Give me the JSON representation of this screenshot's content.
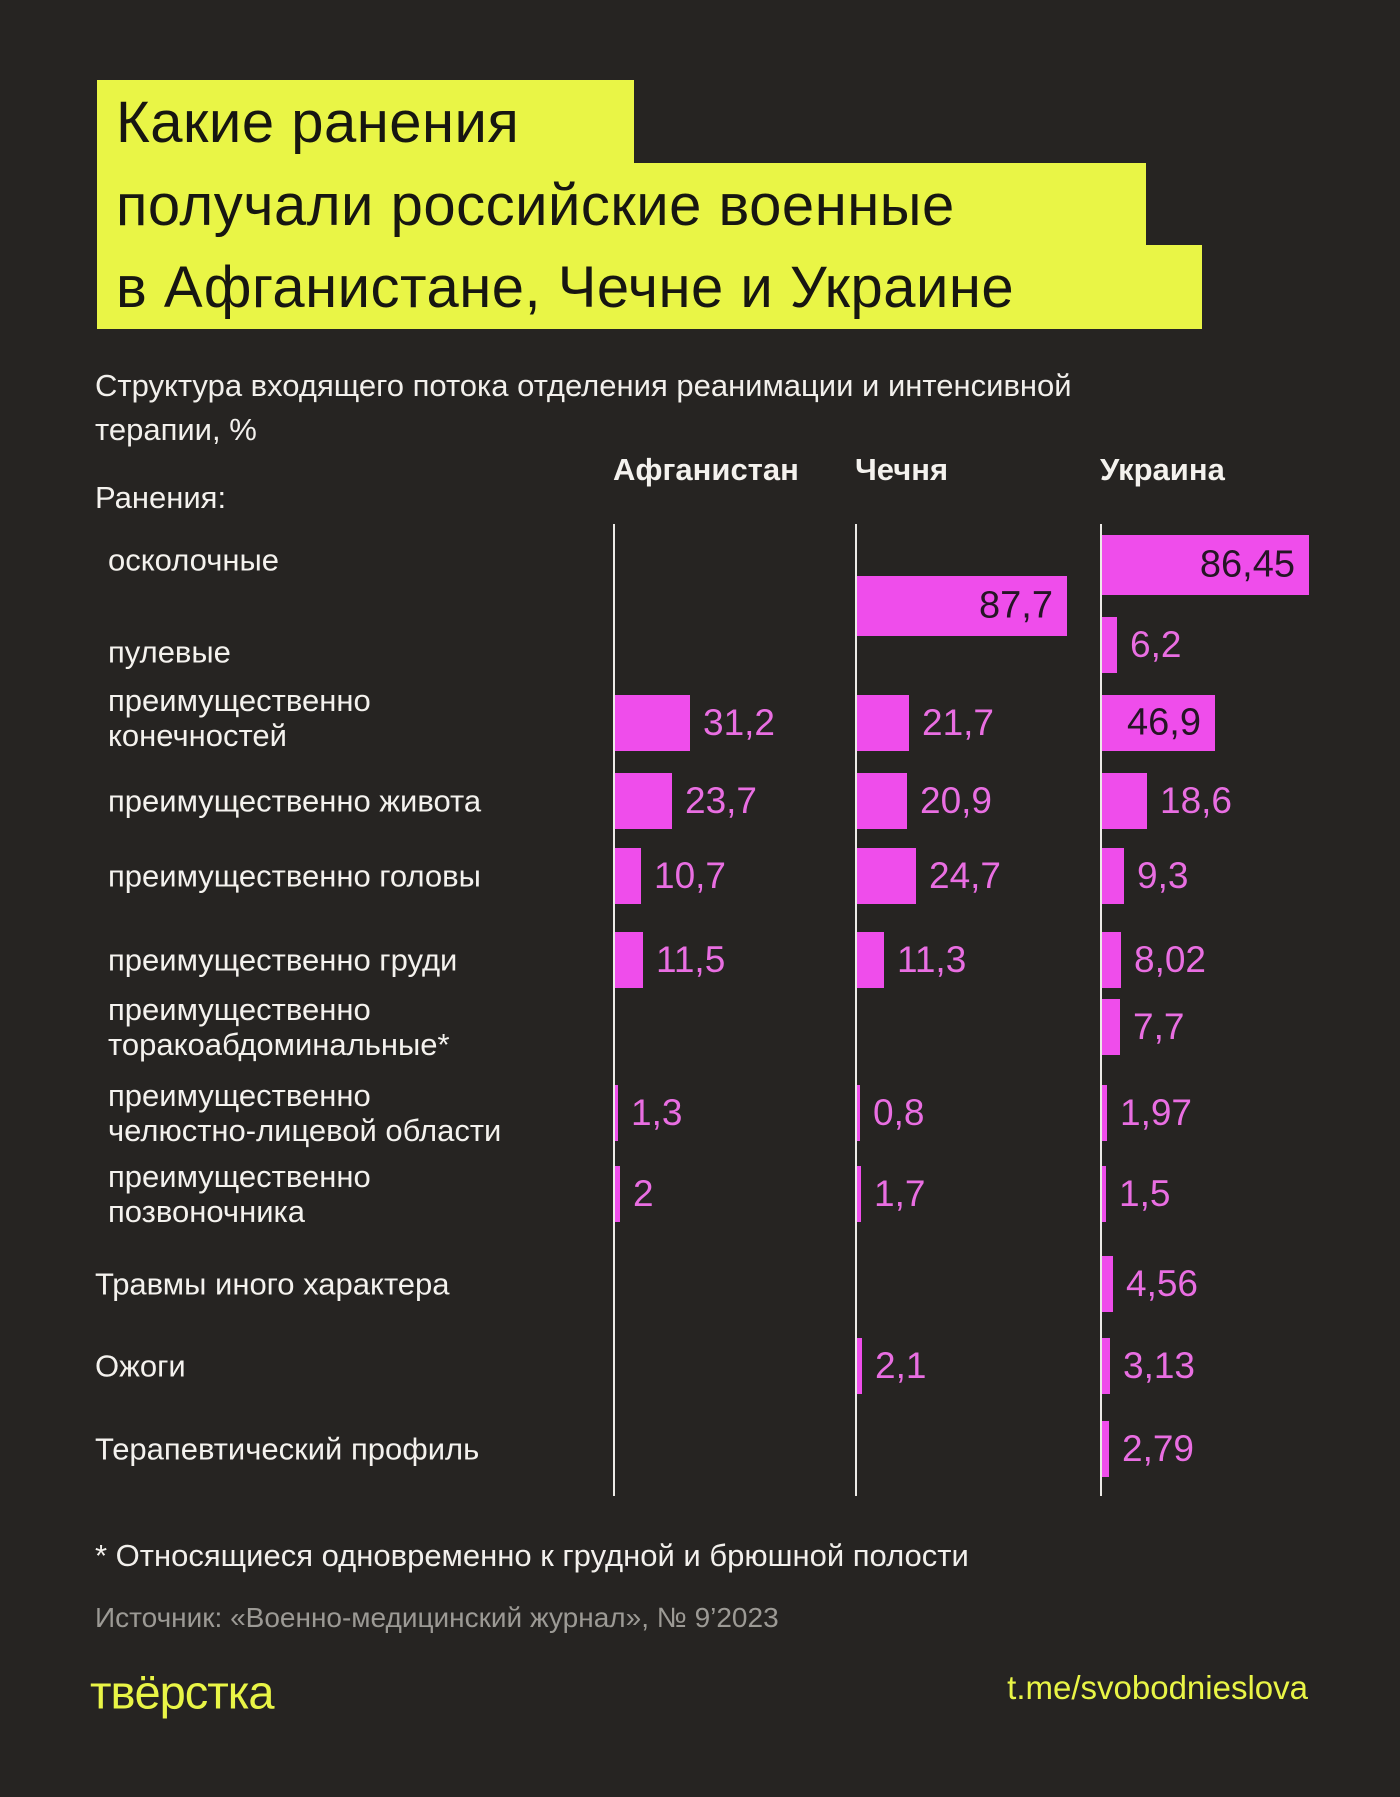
{
  "colors": {
    "background": "#262422",
    "accent_yellow": "#e9f546",
    "bar_magenta": "#ef4deb",
    "value_text_magenta": "#e96ee2",
    "value_text_dark": "#251525",
    "text_white": "#f4f2ee",
    "text_gray": "#9c9a95"
  },
  "title": {
    "lines": [
      "Какие ранения",
      "получали российские военные",
      "в Афганистане, Чечне и Украине"
    ]
  },
  "subtitle": "Структура входящего потока отделения реанимации и интенсивной терапии, %",
  "rows_caption": "Ранения:",
  "footnote": "* Относящиеся одновременно к грудной и брюшной полости",
  "source": "Источник: «Военно-медицинский журнал», № 9’2023",
  "footer": {
    "logo": "твёрстка",
    "telegram": "t.me/svobodnieslova"
  },
  "chart_data": {
    "type": "bar",
    "orientation": "horizontal",
    "unit": "%",
    "title": "Структура входящего потока отделения реанимации и интенсивной терапии, %",
    "columns": [
      "Афганистан",
      "Чечня",
      "Украина"
    ],
    "xlim": [
      0,
      100
    ],
    "grid": false,
    "rows": [
      {
        "label": "осколочные",
        "indent": true,
        "values": [
          null,
          null,
          86.45
        ],
        "display": [
          null,
          null,
          "86,45"
        ]
      },
      {
        "label": "пулевые",
        "indent": true,
        "values": [
          null,
          87.7,
          6.2
        ],
        "display": [
          null,
          "87,7",
          "6,2"
        ]
      },
      {
        "label": "преимущественно\nконечностей",
        "indent": true,
        "values": [
          31.2,
          21.7,
          46.9
        ],
        "display": [
          "31,2",
          "21,7",
          "46,9"
        ]
      },
      {
        "label": "преимущественно живота",
        "indent": true,
        "values": [
          23.7,
          20.9,
          18.6
        ],
        "display": [
          "23,7",
          "20,9",
          "18,6"
        ]
      },
      {
        "label": "преимущественно головы",
        "indent": true,
        "values": [
          10.7,
          24.7,
          9.3
        ],
        "display": [
          "10,7",
          "24,7",
          "9,3"
        ]
      },
      {
        "label": "преимущественно груди",
        "indent": true,
        "values": [
          11.5,
          11.3,
          8.02
        ],
        "display": [
          "11,5",
          "11,3",
          "8,02"
        ]
      },
      {
        "label": "преимущественно\nторакоабдоминальные*",
        "indent": true,
        "values": [
          null,
          null,
          7.7
        ],
        "display": [
          null,
          null,
          "7,7"
        ]
      },
      {
        "label": "преимущественно\nчелюстно-лицевой области",
        "indent": true,
        "values": [
          1.3,
          0.8,
          1.97
        ],
        "display": [
          "1,3",
          "0,8",
          "1,97"
        ]
      },
      {
        "label": "преимущественно\nпозвоночника",
        "indent": true,
        "values": [
          2,
          1.7,
          1.5
        ],
        "display": [
          "2",
          "1,7",
          "1,5"
        ]
      },
      {
        "label": "Травмы иного характера",
        "indent": false,
        "values": [
          null,
          null,
          4.56
        ],
        "display": [
          null,
          null,
          "4,56"
        ]
      },
      {
        "label": "Ожоги",
        "indent": false,
        "values": [
          null,
          2.1,
          3.13
        ],
        "display": [
          null,
          "2,1",
          "3,13"
        ]
      },
      {
        "label": "Терапевтический профиль",
        "indent": false,
        "values": [
          null,
          null,
          2.79
        ],
        "display": [
          null,
          null,
          "2,79"
        ]
      }
    ]
  }
}
